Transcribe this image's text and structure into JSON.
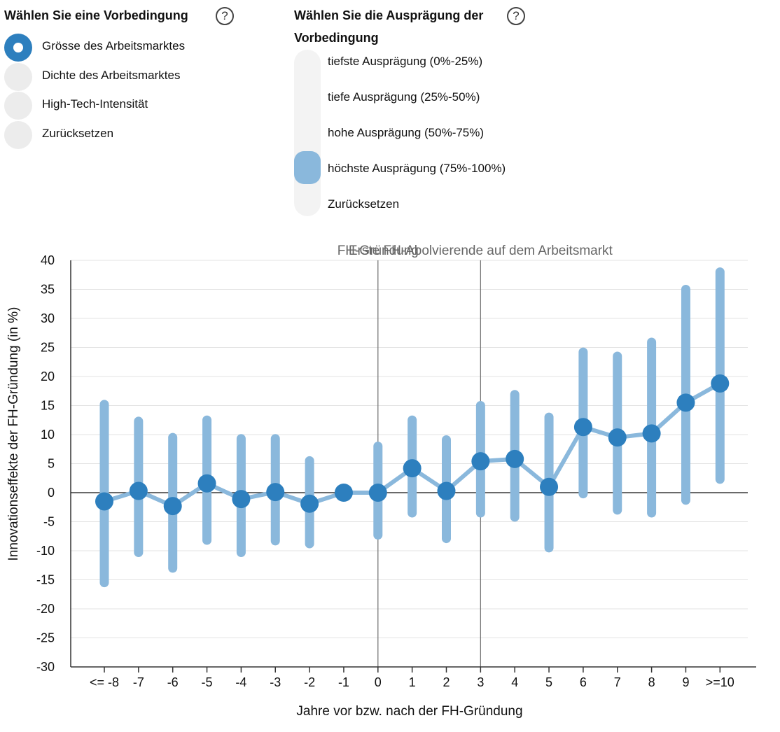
{
  "controls": {
    "condition": {
      "title": "Wählen Sie eine Vorbedingung",
      "help": "?",
      "options": [
        {
          "label": "Grösse des Arbeitsmarktes",
          "selected": true
        },
        {
          "label": "Dichte des Arbeitsmarktes",
          "selected": false
        },
        {
          "label": "High-Tech-Intensität",
          "selected": false
        },
        {
          "label": "Zurücksetzen",
          "selected": false
        }
      ]
    },
    "level": {
      "title_line1": "Wählen Sie die Ausprägung der",
      "title_line2": "Vorbedingung",
      "help": "?",
      "options": [
        "tiefste Ausprägung (0%-25%)",
        "tiefe Ausprägung (25%-50%)",
        "hohe Ausprägung (50%-75%)",
        "höchste Ausprägung (75%-100%)",
        "Zurücksetzen"
      ],
      "selected_index": 3
    }
  },
  "chart_data": {
    "type": "line",
    "xlabel": "Jahre vor bzw. nach der FH-Gründung",
    "ylabel": "Innovationseffekte der FH-Gründung (in %)",
    "categories": [
      "<= -8",
      "-7",
      "-6",
      "-5",
      "-4",
      "-3",
      "-2",
      "-1",
      "0",
      "1",
      "2",
      "3",
      "4",
      "5",
      "6",
      "7",
      "8",
      "9",
      ">=10"
    ],
    "yticks": [
      40,
      35,
      30,
      25,
      20,
      15,
      10,
      5,
      0,
      -5,
      -10,
      -15,
      -20,
      -25,
      -30
    ],
    "ylim": [
      -30,
      40
    ],
    "grid": true,
    "series": [
      {
        "color": "#2d7fbe",
        "values": [
          -1.5,
          0.3,
          -2.3,
          1.6,
          -1.1,
          0.1,
          -1.9,
          0.0,
          0.0,
          4.2,
          0.3,
          5.4,
          5.8,
          1.0,
          11.3,
          9.5,
          10.2,
          15.5,
          18.8
        ],
        "ci_low": [
          -15.5,
          -10.3,
          -13.0,
          -8.2,
          -10.3,
          -8.3,
          -8.8,
          0.0,
          -7.3,
          -3.5,
          -7.9,
          -3.5,
          -4.2,
          -9.5,
          -0.2,
          -3.0,
          -3.5,
          -1.3,
          2.3
        ],
        "ci_high": [
          15.2,
          12.3,
          9.5,
          12.5,
          9.3,
          9.3,
          5.5,
          0.0,
          8.0,
          12.5,
          9.1,
          15.0,
          16.9,
          13.0,
          24.2,
          23.5,
          25.9,
          35.0,
          38.0
        ],
        "ci_color": "#8ab8dc",
        "line_color": "#8ab8dc"
      }
    ],
    "annotations": [
      {
        "category": "0",
        "label": "FH-Gründung"
      },
      {
        "category": "3",
        "label": "Erste FH-Abolvierende auf dem Arbeitsmarkt"
      }
    ]
  }
}
